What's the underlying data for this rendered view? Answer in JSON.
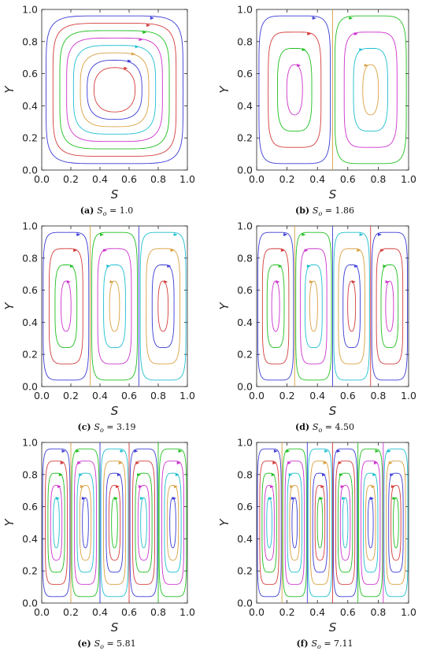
{
  "colors": [
    "#3b3bd6",
    "#d43c3c",
    "#1fbf1f",
    "#cc33cc",
    "#1fbfcf",
    "#d9a040"
  ],
  "chart_data": [
    {
      "panel": "(a)",
      "type": "line",
      "subtype": "streamlines",
      "cells": 1,
      "curves_per_cell": 8,
      "xlabel": "S",
      "ylabel": "Y",
      "xlim": [
        0.0,
        1.0
      ],
      "ylim": [
        0.0,
        1.0
      ],
      "xticks": [
        "0.0",
        "0.2",
        "0.4",
        "0.6",
        "0.8",
        "1.0"
      ],
      "yticks": [
        "0.0",
        "0.2",
        "0.4",
        "0.6",
        "0.8",
        "1.0"
      ],
      "caption_label": "(a)",
      "caption_var": "S",
      "caption_sub": "o",
      "caption_value": " = 1.0",
      "So": 1.0
    },
    {
      "panel": "(b)",
      "type": "line",
      "subtype": "streamlines",
      "cells": 2,
      "curves_per_cell": 4,
      "xlabel": "S",
      "ylabel": "Y",
      "xlim": [
        0.0,
        1.0
      ],
      "ylim": [
        0.0,
        1.0
      ],
      "xticks": [
        "0.0",
        "0.2",
        "0.4",
        "0.6",
        "0.8",
        "1.0"
      ],
      "yticks": [
        "0.0",
        "0.2",
        "0.4",
        "0.6",
        "0.8",
        "1.0"
      ],
      "caption_label": "(b)",
      "caption_var": "S",
      "caption_sub": "o",
      "caption_value": " = 1.86",
      "So": 1.86
    },
    {
      "panel": "(c)",
      "type": "line",
      "subtype": "streamlines",
      "cells": 3,
      "curves_per_cell": 4,
      "xlabel": "S",
      "ylabel": "Y",
      "xlim": [
        0.0,
        1.0
      ],
      "ylim": [
        0.0,
        1.0
      ],
      "xticks": [
        "0.0",
        "0.2",
        "0.4",
        "0.6",
        "0.8",
        "1.0"
      ],
      "yticks": [
        "0.0",
        "0.2",
        "0.4",
        "0.6",
        "0.8",
        "1.0"
      ],
      "caption_label": "(c)",
      "caption_var": "S",
      "caption_sub": "o",
      "caption_value": " = 3.19",
      "So": 3.19
    },
    {
      "panel": "(d)",
      "type": "line",
      "subtype": "streamlines",
      "cells": 4,
      "curves_per_cell": 4,
      "xlabel": "S",
      "ylabel": "Y",
      "xlim": [
        0.0,
        1.0
      ],
      "ylim": [
        0.0,
        1.0
      ],
      "xticks": [
        "0.0",
        "0.2",
        "0.4",
        "0.6",
        "0.8",
        "1.0"
      ],
      "yticks": [
        "0.0",
        "0.2",
        "0.4",
        "0.6",
        "0.8",
        "1.0"
      ],
      "caption_label": "(d)",
      "caption_var": "S",
      "caption_sub": "o",
      "caption_value": " = 4.50",
      "So": 4.5
    },
    {
      "panel": "(e)",
      "type": "line",
      "subtype": "streamlines",
      "cells": 5,
      "curves_per_cell": 5,
      "xlabel": "S",
      "ylabel": "Y",
      "xlim": [
        0.0,
        1.0
      ],
      "ylim": [
        0.0,
        1.0
      ],
      "xticks": [
        "0.0",
        "0.2",
        "0.4",
        "0.6",
        "0.8",
        "1.0"
      ],
      "yticks": [
        "0.0",
        "0.2",
        "0.4",
        "0.6",
        "0.8",
        "1.0"
      ],
      "caption_label": "(e)",
      "caption_var": "S",
      "caption_sub": "o",
      "caption_value": " = 5.81",
      "So": 5.81
    },
    {
      "panel": "(f)",
      "type": "line",
      "subtype": "streamlines",
      "cells": 6,
      "curves_per_cell": 5,
      "xlabel": "S",
      "ylabel": "Y",
      "xlim": [
        0.0,
        1.0
      ],
      "ylim": [
        0.0,
        1.0
      ],
      "xticks": [
        "0.0",
        "0.2",
        "0.4",
        "0.6",
        "0.8",
        "1.0"
      ],
      "yticks": [
        "0.0",
        "0.2",
        "0.4",
        "0.6",
        "0.8",
        "1.0"
      ],
      "caption_label": "(f)",
      "caption_var": "S",
      "caption_sub": "o",
      "caption_value": " = 7.11",
      "So": 7.11
    }
  ]
}
